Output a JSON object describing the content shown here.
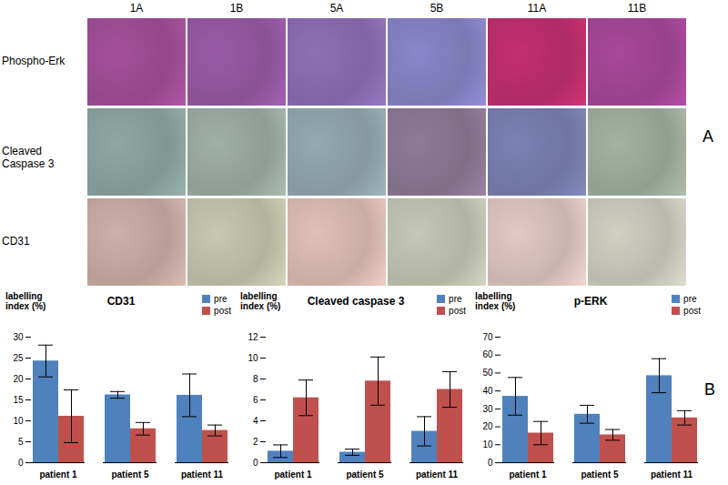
{
  "panel_a": {
    "label": "A",
    "columns": [
      "1A",
      "1B",
      "5A",
      "5B",
      "11A",
      "11B"
    ],
    "rows": [
      "Phospho-Erk",
      "Cleaved Caspase 3",
      "CD31"
    ]
  },
  "panel_b": {
    "label": "B"
  },
  "chart_data": [
    {
      "type": "bar",
      "title": "CD31",
      "ylabel": "labelling index (%)",
      "categories": [
        "patient 1",
        "patient 5",
        "patient 11"
      ],
      "series": [
        {
          "name": "pre",
          "color": "#4F81BD",
          "values": [
            24.3,
            16.2,
            16.1
          ],
          "errors": [
            3.8,
            0.8,
            5.1
          ]
        },
        {
          "name": "post",
          "color": "#C0504D",
          "values": [
            11.1,
            8.1,
            7.7
          ],
          "errors": [
            6.3,
            1.5,
            1.3
          ]
        }
      ],
      "ylim": [
        0,
        30
      ],
      "yticks": [
        0,
        5,
        10,
        15,
        20,
        25,
        30
      ],
      "legend": "top-right"
    },
    {
      "type": "bar",
      "title": "Cleaved caspase 3",
      "ylabel": "labelling index (%)",
      "categories": [
        "patient 1",
        "patient 5",
        "patient 11"
      ],
      "series": [
        {
          "name": "pre",
          "color": "#4F81BD",
          "values": [
            1.1,
            1.0,
            3.0
          ],
          "errors": [
            0.6,
            0.3,
            1.4
          ]
        },
        {
          "name": "post",
          "color": "#C0504D",
          "values": [
            6.2,
            7.8,
            7.0
          ],
          "errors": [
            1.7,
            2.3,
            1.7
          ]
        }
      ],
      "ylim": [
        0,
        12
      ],
      "yticks": [
        0,
        2,
        4,
        6,
        8,
        10,
        12
      ],
      "legend": "top-right"
    },
    {
      "type": "bar",
      "title": "p-ERK",
      "ylabel": "labelling index (%)",
      "categories": [
        "patient 1",
        "patient 5",
        "patient 11"
      ],
      "series": [
        {
          "name": "pre",
          "color": "#4F81BD",
          "values": [
            37,
            27,
            48.5
          ],
          "errors": [
            10.5,
            5,
            9.5
          ]
        },
        {
          "name": "post",
          "color": "#C0504D",
          "values": [
            16.5,
            15.5,
            25
          ],
          "errors": [
            6.5,
            3,
            4
          ]
        }
      ],
      "ylim": [
        0,
        70
      ],
      "yticks": [
        0,
        10,
        20,
        30,
        40,
        50,
        60,
        70
      ],
      "legend": "top-right"
    }
  ]
}
